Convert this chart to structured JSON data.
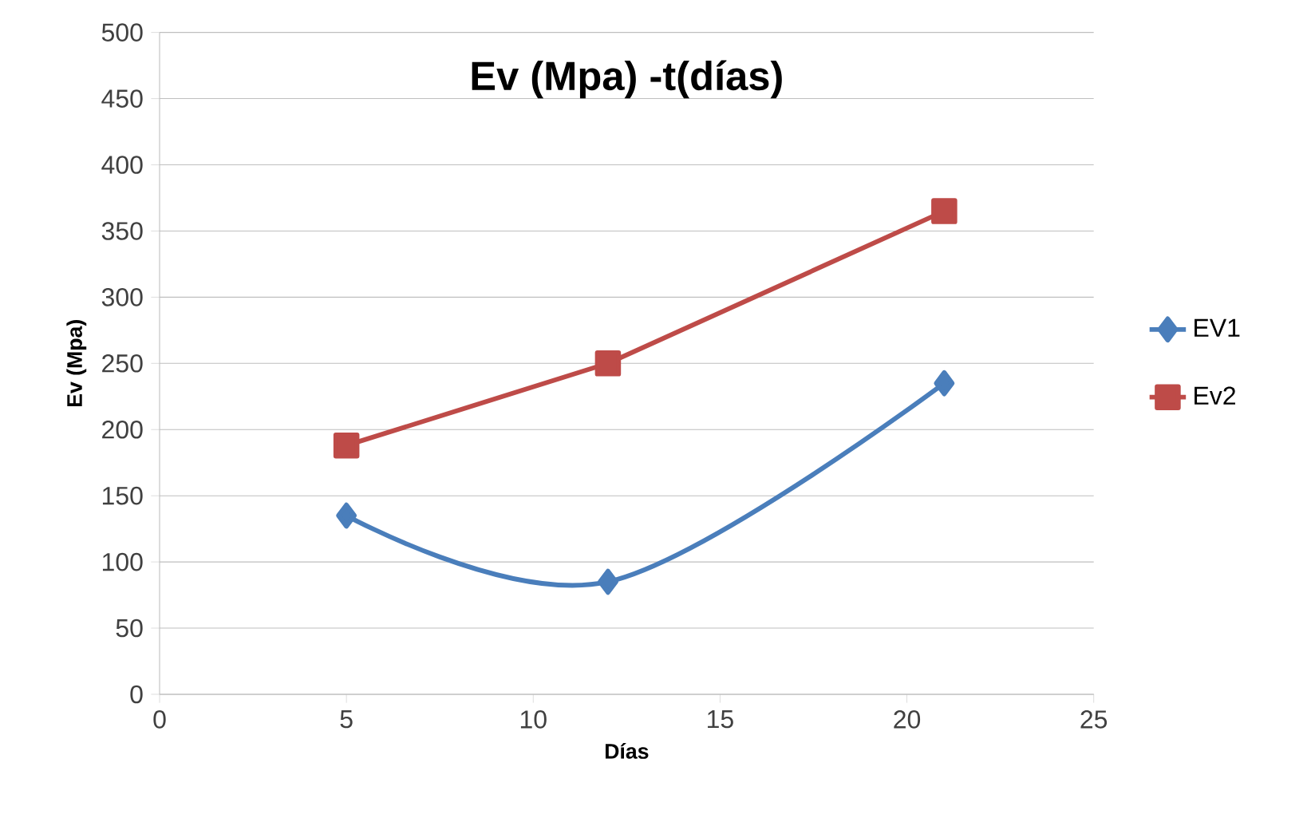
{
  "chart_data": {
    "type": "line",
    "title": "Ev (Mpa) -t(días)",
    "xlabel": "Días",
    "ylabel": "Ev (Mpa)",
    "xlim": [
      0,
      25
    ],
    "xticks": [
      0,
      5,
      10,
      15,
      20,
      25
    ],
    "ylim": [
      0,
      500
    ],
    "yticks": [
      0,
      50,
      100,
      150,
      200,
      250,
      300,
      350,
      400,
      450,
      500
    ],
    "grid": "y",
    "legend": "right",
    "series": [
      {
        "name": "EV1",
        "color": "#4a7ebb",
        "marker": "diamond",
        "x": [
          5,
          12,
          21
        ],
        "values": [
          135,
          85,
          235
        ]
      },
      {
        "name": "Ev2",
        "color": "#be4b48",
        "marker": "square",
        "x": [
          5,
          12,
          21
        ],
        "values": [
          188,
          250,
          365
        ]
      }
    ]
  }
}
